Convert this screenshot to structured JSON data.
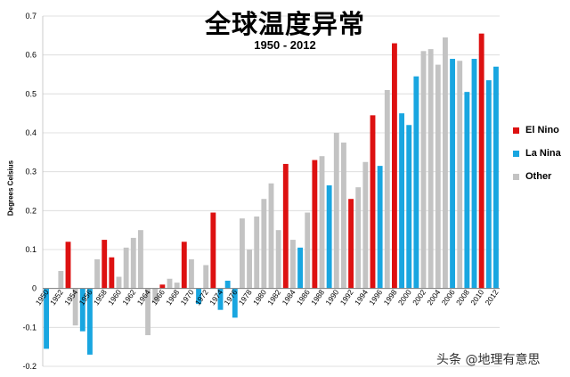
{
  "chart_data": {
    "type": "bar",
    "title": "全球温度异常",
    "subtitle": "1950 - 2012",
    "ylabel": "Degrees Celsius",
    "ylim": [
      -0.2,
      0.7
    ],
    "yticks": [
      -0.2,
      -0.1,
      0,
      0.1,
      0.2,
      0.3,
      0.4,
      0.5,
      0.6,
      0.7
    ],
    "ytick_labels": [
      "-0.2",
      "-0.1",
      "0",
      "0.1",
      "0.2",
      "0.3",
      "0.4",
      "0.5",
      "0.6",
      "0.7"
    ],
    "x_tick_labels": [
      "1950",
      "1952",
      "1954",
      "1956",
      "1958",
      "1960",
      "1962",
      "1964",
      "1966",
      "1968",
      "1970",
      "1972",
      "1974",
      "1976",
      "1978",
      "1980",
      "1982",
      "1984",
      "1986",
      "1988",
      "1990",
      "1992",
      "1994",
      "1996",
      "1998",
      "2000",
      "2002",
      "2004",
      "2006",
      "2008",
      "2010",
      "2012"
    ],
    "grid": true,
    "legend_position": "right",
    "colors": {
      "El Nino": "#dd1111",
      "La Nina": "#19a6e0",
      "Other": "#c3c3c3"
    },
    "series": [
      {
        "name": "El Nino",
        "color": "#dd1111"
      },
      {
        "name": "La Nina",
        "color": "#19a6e0"
      },
      {
        "name": "Other",
        "color": "#c3c3c3"
      }
    ],
    "bars": [
      {
        "year": 1950,
        "value": -0.155,
        "type": "La Nina"
      },
      {
        "year": 1951,
        "value": 0.0,
        "type": "Other"
      },
      {
        "year": 1952,
        "value": 0.045,
        "type": "Other"
      },
      {
        "year": 1953,
        "value": 0.12,
        "type": "El Nino"
      },
      {
        "year": 1954,
        "value": -0.095,
        "type": "Other"
      },
      {
        "year": 1955,
        "value": -0.11,
        "type": "La Nina"
      },
      {
        "year": 1956,
        "value": -0.17,
        "type": "La Nina"
      },
      {
        "year": 1957,
        "value": 0.075,
        "type": "Other"
      },
      {
        "year": 1958,
        "value": 0.125,
        "type": "El Nino"
      },
      {
        "year": 1959,
        "value": 0.08,
        "type": "El Nino"
      },
      {
        "year": 1960,
        "value": 0.03,
        "type": "Other"
      },
      {
        "year": 1961,
        "value": 0.105,
        "type": "Other"
      },
      {
        "year": 1962,
        "value": 0.13,
        "type": "Other"
      },
      {
        "year": 1963,
        "value": 0.15,
        "type": "Other"
      },
      {
        "year": 1964,
        "value": -0.12,
        "type": "Other"
      },
      {
        "year": 1965,
        "value": -0.035,
        "type": "Other"
      },
      {
        "year": 1966,
        "value": 0.01,
        "type": "El Nino"
      },
      {
        "year": 1967,
        "value": 0.025,
        "type": "Other"
      },
      {
        "year": 1968,
        "value": 0.015,
        "type": "Other"
      },
      {
        "year": 1969,
        "value": 0.12,
        "type": "El Nino"
      },
      {
        "year": 1970,
        "value": 0.075,
        "type": "Other"
      },
      {
        "year": 1971,
        "value": -0.04,
        "type": "La Nina"
      },
      {
        "year": 1972,
        "value": 0.06,
        "type": "Other"
      },
      {
        "year": 1973,
        "value": 0.195,
        "type": "El Nino"
      },
      {
        "year": 1974,
        "value": -0.055,
        "type": "La Nina"
      },
      {
        "year": 1975,
        "value": 0.02,
        "type": "La Nina"
      },
      {
        "year": 1976,
        "value": -0.075,
        "type": "La Nina"
      },
      {
        "year": 1977,
        "value": 0.18,
        "type": "Other"
      },
      {
        "year": 1978,
        "value": 0.1,
        "type": "Other"
      },
      {
        "year": 1979,
        "value": 0.185,
        "type": "Other"
      },
      {
        "year": 1980,
        "value": 0.23,
        "type": "Other"
      },
      {
        "year": 1981,
        "value": 0.27,
        "type": "Other"
      },
      {
        "year": 1982,
        "value": 0.15,
        "type": "Other"
      },
      {
        "year": 1983,
        "value": 0.32,
        "type": "El Nino"
      },
      {
        "year": 1984,
        "value": 0.125,
        "type": "Other"
      },
      {
        "year": 1985,
        "value": 0.105,
        "type": "La Nina"
      },
      {
        "year": 1986,
        "value": 0.195,
        "type": "Other"
      },
      {
        "year": 1987,
        "value": 0.33,
        "type": "El Nino"
      },
      {
        "year": 1988,
        "value": 0.34,
        "type": "Other"
      },
      {
        "year": 1989,
        "value": 0.265,
        "type": "La Nina"
      },
      {
        "year": 1990,
        "value": 0.4,
        "type": "Other"
      },
      {
        "year": 1991,
        "value": 0.375,
        "type": "Other"
      },
      {
        "year": 1992,
        "value": 0.23,
        "type": "El Nino"
      },
      {
        "year": 1993,
        "value": 0.26,
        "type": "Other"
      },
      {
        "year": 1994,
        "value": 0.325,
        "type": "Other"
      },
      {
        "year": 1995,
        "value": 0.445,
        "type": "El Nino"
      },
      {
        "year": 1996,
        "value": 0.315,
        "type": "La Nina"
      },
      {
        "year": 1997,
        "value": 0.51,
        "type": "Other"
      },
      {
        "year": 1998,
        "value": 0.63,
        "type": "El Nino"
      },
      {
        "year": 1999,
        "value": 0.45,
        "type": "La Nina"
      },
      {
        "year": 2000,
        "value": 0.42,
        "type": "La Nina"
      },
      {
        "year": 2001,
        "value": 0.545,
        "type": "La Nina"
      },
      {
        "year": 2002,
        "value": 0.61,
        "type": "Other"
      },
      {
        "year": 2003,
        "value": 0.615,
        "type": "Other"
      },
      {
        "year": 2004,
        "value": 0.575,
        "type": "Other"
      },
      {
        "year": 2005,
        "value": 0.645,
        "type": "Other"
      },
      {
        "year": 2006,
        "value": 0.59,
        "type": "La Nina"
      },
      {
        "year": 2007,
        "value": 0.585,
        "type": "Other"
      },
      {
        "year": 2008,
        "value": 0.505,
        "type": "La Nina"
      },
      {
        "year": 2009,
        "value": 0.59,
        "type": "La Nina"
      },
      {
        "year": 2010,
        "value": 0.655,
        "type": "El Nino"
      },
      {
        "year": 2011,
        "value": 0.535,
        "type": "La Nina"
      },
      {
        "year": 2012,
        "value": 0.57,
        "type": "La Nina"
      }
    ]
  },
  "legend": {
    "items": [
      {
        "label": "El Nino",
        "color": "#dd1111"
      },
      {
        "label": "La Nina",
        "color": "#19a6e0"
      },
      {
        "label": "Other",
        "color": "#c3c3c3"
      }
    ]
  },
  "watermark": "头条 @地理有意思"
}
